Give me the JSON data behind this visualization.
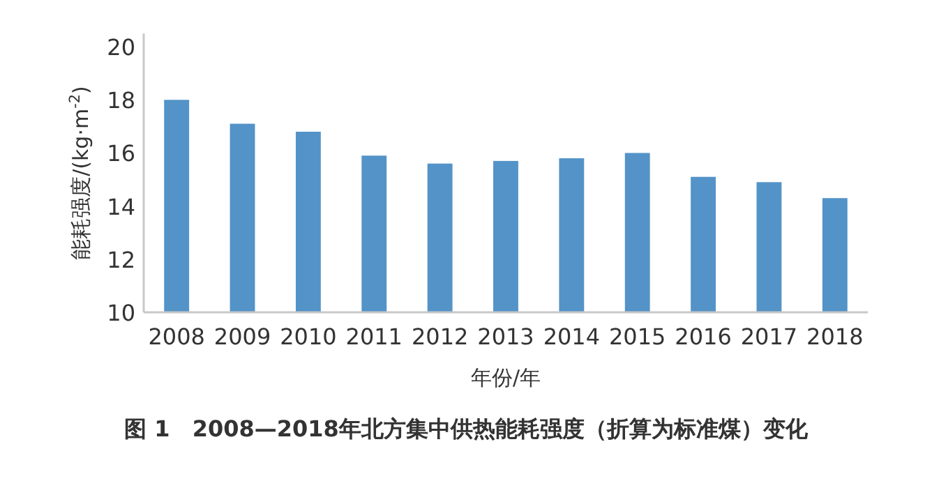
{
  "chart_data": {
    "type": "bar",
    "title": "图 1　2008—2018年北方集中供热能耗强度（折算为标准煤）变化",
    "xlabel": "年份/年",
    "ylabel": "能耗强度/(kg·m$^{-2}$)",
    "categories": [
      "2008",
      "2009",
      "2010",
      "2011",
      "2012",
      "2013",
      "2014",
      "2015",
      "2016",
      "2017",
      "2018"
    ],
    "values": [
      18.0,
      17.1,
      16.8,
      15.9,
      15.6,
      15.7,
      15.8,
      16.0,
      15.1,
      14.9,
      14.3
    ],
    "color": "#5393c8",
    "ylim": [
      10,
      20.5
    ],
    "yticks": [
      10,
      12,
      14,
      16,
      18,
      20
    ],
    "grid": false
  }
}
